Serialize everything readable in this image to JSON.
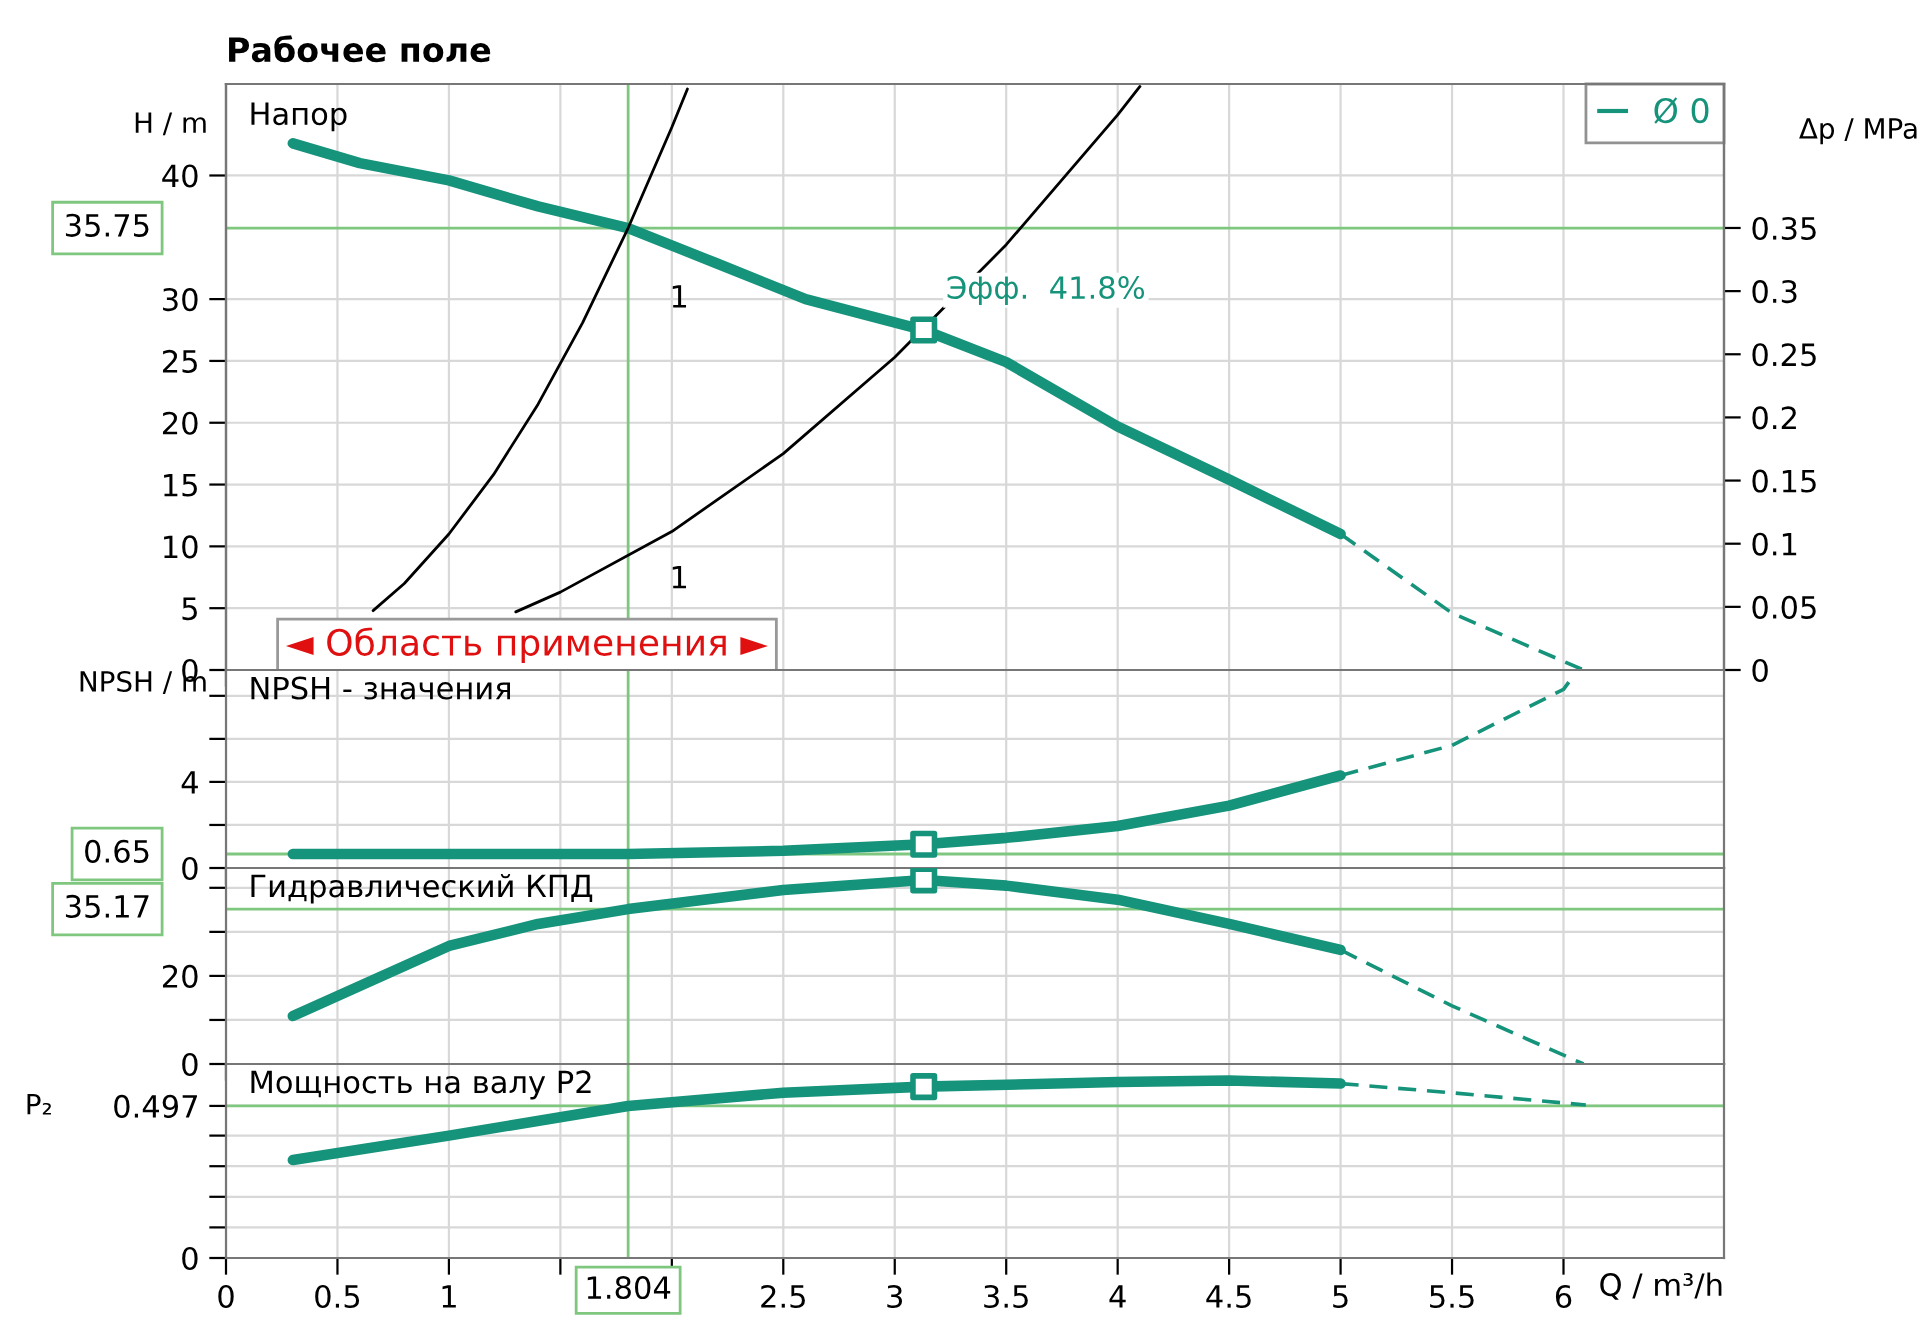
{
  "chart_data": [
    {
      "type": "line",
      "title": "Рабочее поле",
      "subtitle": "Напор",
      "ylabel": "H / m",
      "y2label": "Δp / MPa",
      "xlim": [
        0,
        6.72
      ],
      "xticks": [
        0,
        0.5,
        1,
        1.5,
        2,
        2.5,
        3,
        3.5,
        4,
        4.5,
        5,
        5.5,
        6
      ],
      "ylim": [
        0,
        47.4
      ],
      "yticks": [
        0,
        5,
        10,
        15,
        20,
        25,
        30,
        40
      ],
      "y2lim": [
        0,
        0.464
      ],
      "y2ticks": [
        0,
        0.05,
        0.1,
        0.15,
        0.2,
        0.25,
        0.3,
        0.35
      ],
      "grid": true,
      "legend": "top right",
      "tick_labels": "y",
      "series": [
        {
          "name": "Ø 0",
          "type": "line",
          "color": "#16937b",
          "x": [
            0.3,
            0.6,
            1.0,
            1.4,
            1.804,
            2.2,
            2.6,
            3.13,
            3.5,
            4.0,
            4.5,
            5.0
          ],
          "values": [
            42.6,
            41.0,
            39.6,
            37.5,
            35.75,
            32.9,
            30.0,
            27.5,
            24.9,
            19.7,
            15.4,
            11.0
          ]
        },
        {
          "type": "line",
          "line_style": "dashed",
          "color": "#16937b",
          "x": [
            5.0,
            5.5,
            6.09
          ],
          "values": [
            11.0,
            4.6,
            0
          ]
        },
        {
          "type": "line",
          "color": "#000000",
          "x": [
            0.66,
            0.8,
            1.0,
            1.2,
            1.4,
            1.6,
            1.804,
            2.0,
            2.07
          ],
          "values": [
            4.8,
            7.0,
            11.0,
            15.8,
            21.5,
            28.1,
            35.75,
            43.9,
            47.0
          ]
        },
        {
          "type": "line",
          "color": "#000000",
          "x": [
            1.3,
            1.5,
            2.0,
            2.5,
            3.0,
            3.5,
            4.0,
            4.1
          ],
          "values": [
            4.7,
            6.3,
            11.2,
            17.5,
            25.3,
            34.4,
            44.9,
            47.2
          ]
        },
        {
          "type": "scatter",
          "marker": "square",
          "color": "#16937b",
          "x": [
            3.13
          ],
          "values": [
            27.5
          ]
        }
      ],
      "ref_lines": [
        {
          "axis": "x",
          "value": 1.804,
          "color": "#7fc77f"
        },
        {
          "axis": "y",
          "value": 35.75,
          "label": "35.75",
          "color": "#7fc77f"
        }
      ],
      "annotations": [
        {
          "text": "Эфф.  41.8%",
          "x": 3.13,
          "y": 27.5
        },
        "1",
        "1",
        "◄ Область применения ►"
      ]
    },
    {
      "type": "line",
      "subtitle": "NPSH - значения",
      "ylabel": "NPSH / m",
      "xlim": [
        0,
        6.72
      ],
      "xticks": [
        0,
        0.5,
        1,
        1.5,
        2,
        2.5,
        3,
        3.5,
        4,
        4.5,
        5,
        5.5,
        6
      ],
      "ylim": [
        0,
        9.2
      ],
      "yticks": [
        0,
        {
          "value": 2,
          "label": null
        },
        4,
        {
          "value": 6,
          "label": null
        },
        {
          "value": 8,
          "label": null
        }
      ],
      "grid": true,
      "tick_labels": "y",
      "series": [
        {
          "type": "line",
          "color": "#16937b",
          "x": [
            0.3,
            1.0,
            1.804,
            2.5,
            3.13,
            3.5,
            4.0,
            4.5,
            5.0
          ],
          "values": [
            0.65,
            0.65,
            0.65,
            0.8,
            1.1,
            1.4,
            1.95,
            2.9,
            4.3
          ]
        },
        {
          "type": "line",
          "line_style": "dashed",
          "color": "#16937b",
          "x": [
            5.0,
            5.5,
            6.0,
            6.05
          ],
          "values": [
            4.3,
            5.7,
            8.3,
            9.0
          ]
        },
        {
          "type": "scatter",
          "marker": "square",
          "color": "#16937b",
          "x": [
            3.13
          ],
          "values": [
            1.1
          ]
        }
      ],
      "ref_lines": [
        {
          "axis": "x",
          "value": 1.804,
          "color": "#7fc77f"
        },
        {
          "axis": "y",
          "value": 0.65,
          "label": "0.65",
          "color": "#7fc77f"
        }
      ]
    },
    {
      "type": "line",
      "subtitle": "Гидравлический КПД",
      "xlim": [
        0,
        6.72
      ],
      "xticks": [
        0,
        0.5,
        1,
        1.5,
        2,
        2.5,
        3,
        3.5,
        4,
        4.5,
        5,
        5.5,
        6
      ],
      "ylim": [
        0,
        44.5
      ],
      "yticks": [
        0,
        {
          "value": 10,
          "label": null
        },
        20,
        {
          "value": 30,
          "label": null
        },
        {
          "value": 40,
          "label": null
        }
      ],
      "grid": true,
      "tick_labels": "y",
      "series": [
        {
          "type": "line",
          "color": "#16937b",
          "x": [
            0.3,
            0.6,
            1.0,
            1.4,
            1.804,
            2.5,
            3.13,
            3.5,
            4.0,
            4.5,
            5.0
          ],
          "values": [
            10.9,
            17.7,
            26.8,
            31.8,
            35.17,
            39.5,
            41.8,
            40.5,
            37.3,
            31.8,
            25.9
          ]
        },
        {
          "type": "line",
          "line_style": "dashed",
          "color": "#16937b",
          "x": [
            5.0,
            5.5,
            6.09
          ],
          "values": [
            25.9,
            13.2,
            0
          ]
        },
        {
          "type": "scatter",
          "marker": "square",
          "color": "#16937b",
          "x": [
            3.13
          ],
          "values": [
            41.8
          ]
        }
      ],
      "ref_lines": [
        {
          "axis": "x",
          "value": 1.804,
          "color": "#7fc77f"
        },
        {
          "axis": "y",
          "value": 35.17,
          "label": "35.17",
          "color": "#7fc77f"
        }
      ]
    },
    {
      "type": "line",
      "subtitle": "Мощность на валу P2",
      "ylabel": "P₂",
      "xlabel": "Q / m³/h",
      "xlim": [
        0,
        6.72
      ],
      "xticks": [
        0,
        0.5,
        1,
        {
          "value": 1.5,
          "label": null
        },
        {
          "value": 2,
          "label": null
        },
        2.5,
        3,
        3.5,
        4,
        4.5,
        5,
        5.5,
        6
      ],
      "ylim": [
        0,
        0.634
      ],
      "yticks": [
        0,
        {
          "value": 0.1,
          "label": null
        },
        {
          "value": 0.2,
          "label": null
        },
        {
          "value": 0.3,
          "label": null
        },
        {
          "value": 0.4,
          "label": null
        },
        0.497
      ],
      "grid": true,
      "series": [
        {
          "type": "line",
          "color": "#16937b",
          "x": [
            0.3,
            1.0,
            1.804,
            2.5,
            3.13,
            4.0,
            4.5,
            5.0
          ],
          "values": [
            0.32,
            0.4,
            0.497,
            0.54,
            0.56,
            0.575,
            0.58,
            0.57
          ]
        },
        {
          "type": "line",
          "line_style": "dashed",
          "color": "#16937b",
          "x": [
            5.0,
            5.5,
            6.1
          ],
          "values": [
            0.57,
            0.54,
            0.5
          ]
        },
        {
          "type": "scatter",
          "marker": "square",
          "color": "#16937b",
          "x": [
            3.13
          ],
          "values": [
            0.56
          ]
        }
      ],
      "ref_lines": [
        {
          "axis": "x",
          "value": 1.804,
          "label": "1.804",
          "color": "#7fc77f"
        },
        {
          "axis": "y",
          "value": 0.497,
          "color": "#7fc77f"
        }
      ]
    }
  ]
}
